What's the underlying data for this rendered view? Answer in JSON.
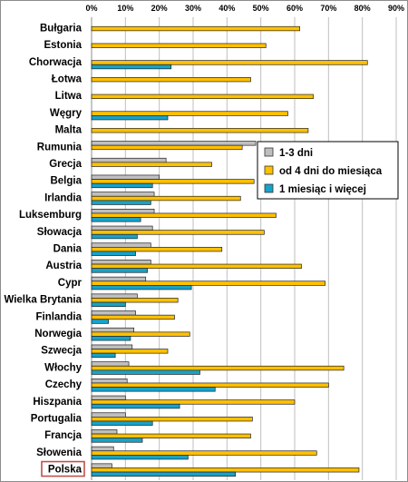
{
  "chart_data": {
    "type": "bar",
    "orientation": "horizontal",
    "xlim": [
      0,
      90
    ],
    "x_ticks": [
      "0%",
      "10%",
      "20%",
      "30%",
      "40%",
      "50%",
      "60%",
      "70%",
      "80%",
      "90%"
    ],
    "x_axis_position": "top",
    "grid": true,
    "legend_position": "right-middle",
    "highlighted_category": "Polska",
    "highlight_color": "#c0504d",
    "categories": [
      "Bułgaria",
      "Estonia",
      "Chorwacja",
      "Łotwa",
      "Litwa",
      "Węgry",
      "Malta",
      "Rumunia",
      "Grecja",
      "Belgia",
      "Irlandia",
      "Luksemburg",
      "Słowacja",
      "Dania",
      "Austria",
      "Cypr",
      "Wielka Brytania",
      "Finlandia",
      "Norwegia",
      "Szwecja",
      "Włochy",
      "Czechy",
      "Hiszpania",
      "Portugalia",
      "Francja",
      "Słowenia",
      "Polska"
    ],
    "series": [
      {
        "name": "1-3 dni",
        "color": "#bfbfbf",
        "values": [
          0,
          0,
          0,
          0,
          0,
          0,
          0,
          48.5,
          22,
          20,
          18.5,
          18.5,
          18,
          17.5,
          17.5,
          16,
          13.5,
          13,
          12.5,
          12,
          11,
          10.5,
          10,
          10,
          7.5,
          6.5,
          6
        ]
      },
      {
        "name": "od 4 dni do miesiąca",
        "color": "#ffc000",
        "values": [
          61.5,
          51.5,
          81.5,
          47,
          65.5,
          58,
          64,
          44.5,
          35.5,
          48,
          44,
          54.5,
          51,
          38.5,
          62,
          69,
          25.5,
          24.5,
          29,
          22.5,
          74.5,
          70,
          60,
          47.5,
          47,
          66.5,
          79
        ]
      },
      {
        "name": "1 miesiąc i więcej",
        "color": "#17a2c9",
        "values": [
          0,
          0,
          23.5,
          0,
          0,
          22.5,
          0,
          0,
          0,
          18,
          17.5,
          14.5,
          13.5,
          13,
          16.5,
          29.5,
          10,
          5,
          11.5,
          7,
          32,
          36.5,
          26,
          18,
          15,
          28.5,
          42.5
        ]
      }
    ]
  }
}
